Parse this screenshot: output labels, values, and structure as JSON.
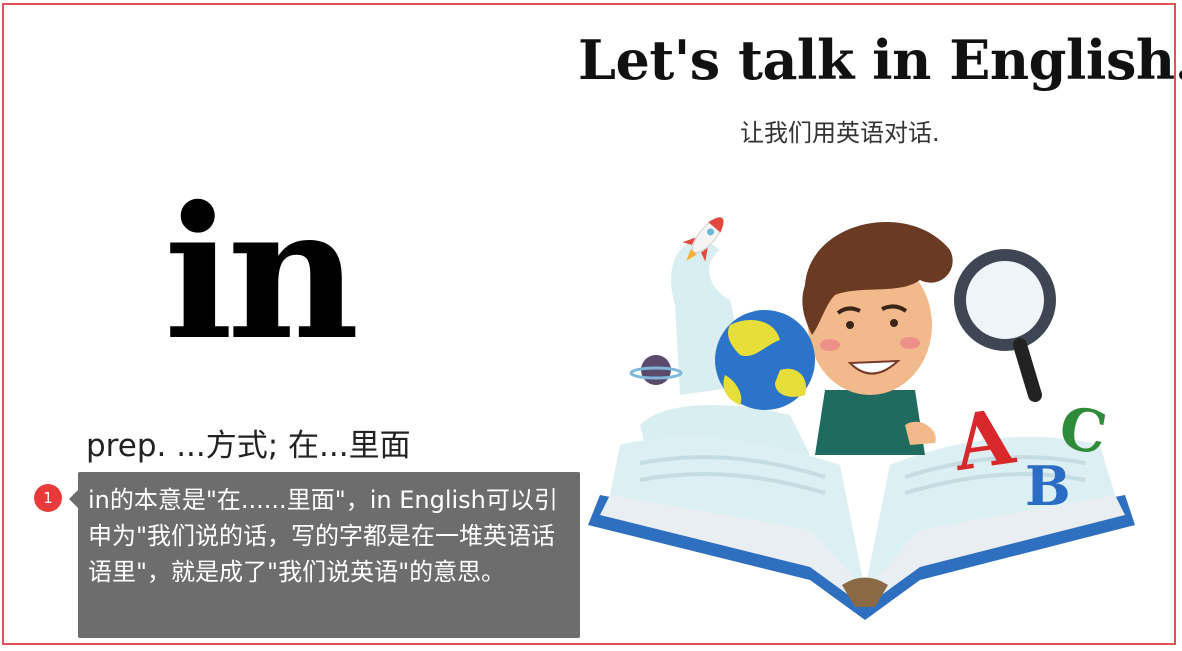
{
  "slide": {
    "headline": "Let's talk in English.",
    "subline": "让我们用英语对话.",
    "word": "in",
    "definition": "prep. ...方式; 在...里面"
  },
  "note": {
    "badge": "1",
    "text": "in的本意是\"在......里面\"，in English可以引申为\"我们说的话，写的字都是在一堆英语话语里\"，就是成了\"我们说英语\"的意思。"
  },
  "illustration": {
    "letters": [
      "A",
      "B",
      "C"
    ],
    "colors": {
      "book_cover": "#2f6fbf",
      "page_tint": "#dceff2",
      "letter_a": "#d8282c",
      "letter_b": "#2b6cc4",
      "letter_c": "#2e8b3a",
      "hair": "#6b3a22",
      "skin": "#f2b98a",
      "shirt": "#1f6b60",
      "frame": "#e25252"
    }
  }
}
